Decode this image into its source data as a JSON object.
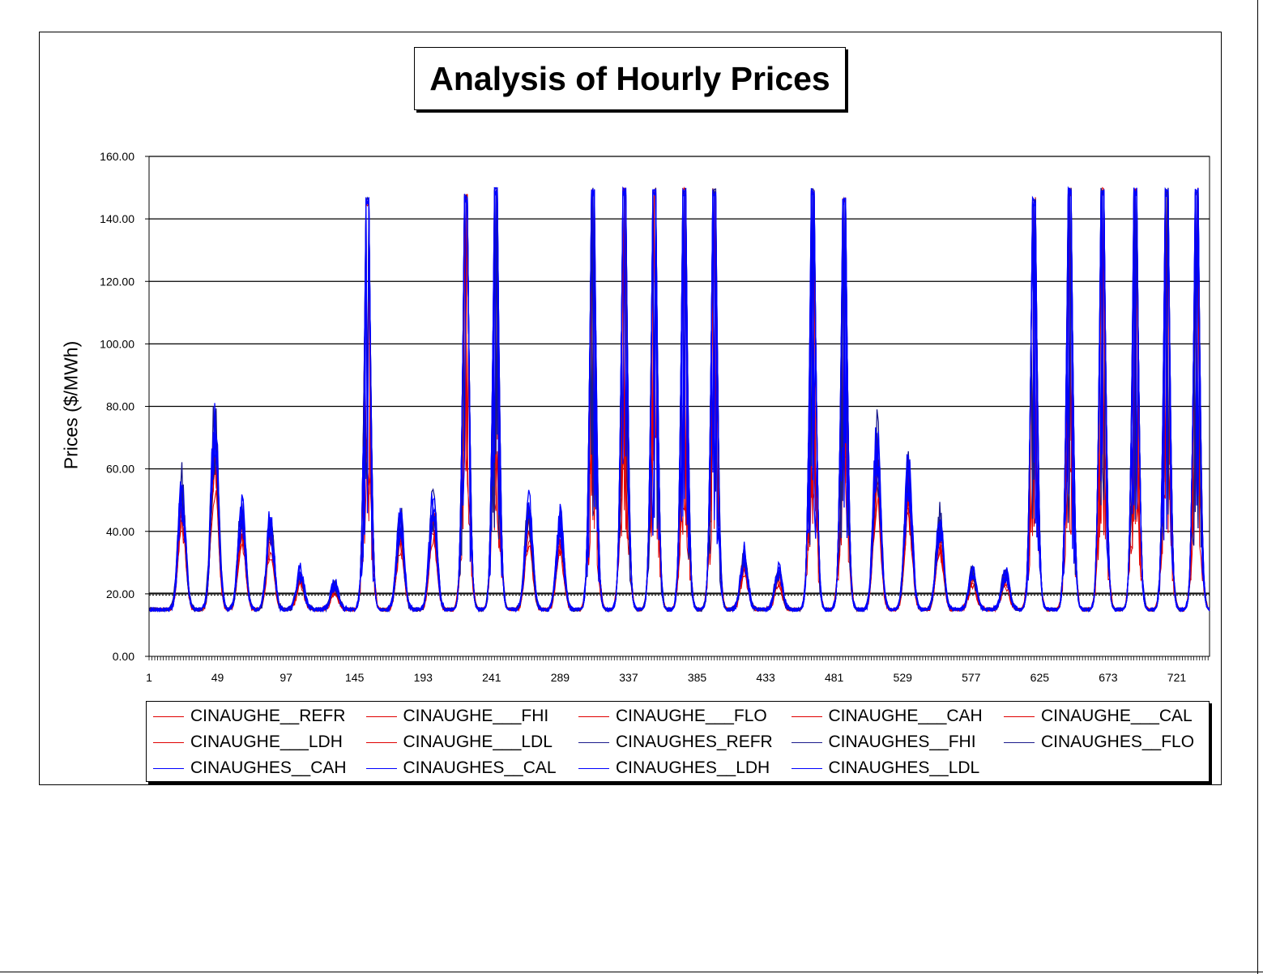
{
  "chart_data": {
    "type": "line",
    "title": "Analysis of Hourly Prices",
    "xlabel": "",
    "ylabel": "Prices ($/MWh)",
    "ylim": [
      0,
      160
    ],
    "xlim": [
      1,
      744
    ],
    "y_ticks": [
      "0.00",
      "20.00",
      "40.00",
      "60.00",
      "80.00",
      "100.00",
      "120.00",
      "140.00",
      "160.00"
    ],
    "x_ticks": [
      "1",
      "49",
      "97",
      "145",
      "193",
      "241",
      "289",
      "337",
      "385",
      "433",
      "481",
      "529",
      "577",
      "625",
      "673",
      "721"
    ],
    "gridlines": "horizontal",
    "reference_line_y": 20,
    "legend_position": "bottom",
    "colors": {
      "red": "#e00000",
      "navy": "#1a1a8c",
      "blue": "#0000ff",
      "grid": "#000000"
    },
    "day_peaks": [
      {
        "day": 1,
        "center": 24,
        "max": 62
      },
      {
        "day": 2,
        "center": 47,
        "max": 87
      },
      {
        "day": 3,
        "center": 66,
        "max": 54
      },
      {
        "day": 4,
        "center": 86,
        "max": 49
      },
      {
        "day": 5,
        "center": 107,
        "max": 30
      },
      {
        "day": 6,
        "center": 131,
        "max": 25
      },
      {
        "day": 7,
        "center": 154,
        "max": 147
      },
      {
        "day": 8,
        "center": 177,
        "max": 50
      },
      {
        "day": 9,
        "center": 200,
        "max": 57
      },
      {
        "day": 10,
        "center": 223,
        "max": 148
      },
      {
        "day": 11,
        "center": 244,
        "max": 150
      },
      {
        "day": 12,
        "center": 267,
        "max": 55
      },
      {
        "day": 13,
        "center": 289,
        "max": 49
      },
      {
        "day": 14,
        "center": 312,
        "max": 150
      },
      {
        "day": 15,
        "center": 334,
        "max": 150
      },
      {
        "day": 16,
        "center": 355,
        "max": 150
      },
      {
        "day": 17,
        "center": 376,
        "max": 150
      },
      {
        "day": 18,
        "center": 397,
        "max": 150
      },
      {
        "day": 19,
        "center": 418,
        "max": 36
      },
      {
        "day": 20,
        "center": 442,
        "max": 30
      },
      {
        "day": 21,
        "center": 466,
        "max": 150
      },
      {
        "day": 22,
        "center": 488,
        "max": 147
      },
      {
        "day": 23,
        "center": 511,
        "max": 80
      },
      {
        "day": 24,
        "center": 533,
        "max": 69
      },
      {
        "day": 25,
        "center": 555,
        "max": 49
      },
      {
        "day": 26,
        "center": 578,
        "max": 30
      },
      {
        "day": 27,
        "center": 601,
        "max": 30
      },
      {
        "day": 28,
        "center": 621,
        "max": 147
      },
      {
        "day": 29,
        "center": 646,
        "max": 150
      },
      {
        "day": 30,
        "center": 669,
        "max": 150
      },
      {
        "day": 31,
        "center": 692,
        "max": 150
      },
      {
        "day": 32,
        "center": 714,
        "max": 150
      },
      {
        "day": 33,
        "center": 735,
        "max": 150
      }
    ],
    "series": [
      {
        "name": "CINAUGHE__REFR",
        "color": "#e00000"
      },
      {
        "name": "CINAUGHE___FHI",
        "color": "#e00000"
      },
      {
        "name": "CINAUGHE___FLO",
        "color": "#e00000"
      },
      {
        "name": "CINAUGHE___CAH",
        "color": "#e00000"
      },
      {
        "name": "CINAUGHE___CAL",
        "color": "#e00000"
      },
      {
        "name": "CINAUGHE___LDH",
        "color": "#e00000"
      },
      {
        "name": "CINAUGHE___LDL",
        "color": "#e00000"
      },
      {
        "name": "CINAUGHES_REFR",
        "color": "#1a1a8c"
      },
      {
        "name": "CINAUGHES__FHI",
        "color": "#1a1a8c"
      },
      {
        "name": "CINAUGHES__FLO",
        "color": "#1a1a8c"
      },
      {
        "name": "CINAUGHES__CAH",
        "color": "#0000ff"
      },
      {
        "name": "CINAUGHES__CAL",
        "color": "#0000ff"
      },
      {
        "name": "CINAUGHES__LDH",
        "color": "#0000ff"
      },
      {
        "name": "CINAUGHES__LDL",
        "color": "#0000ff"
      }
    ]
  }
}
